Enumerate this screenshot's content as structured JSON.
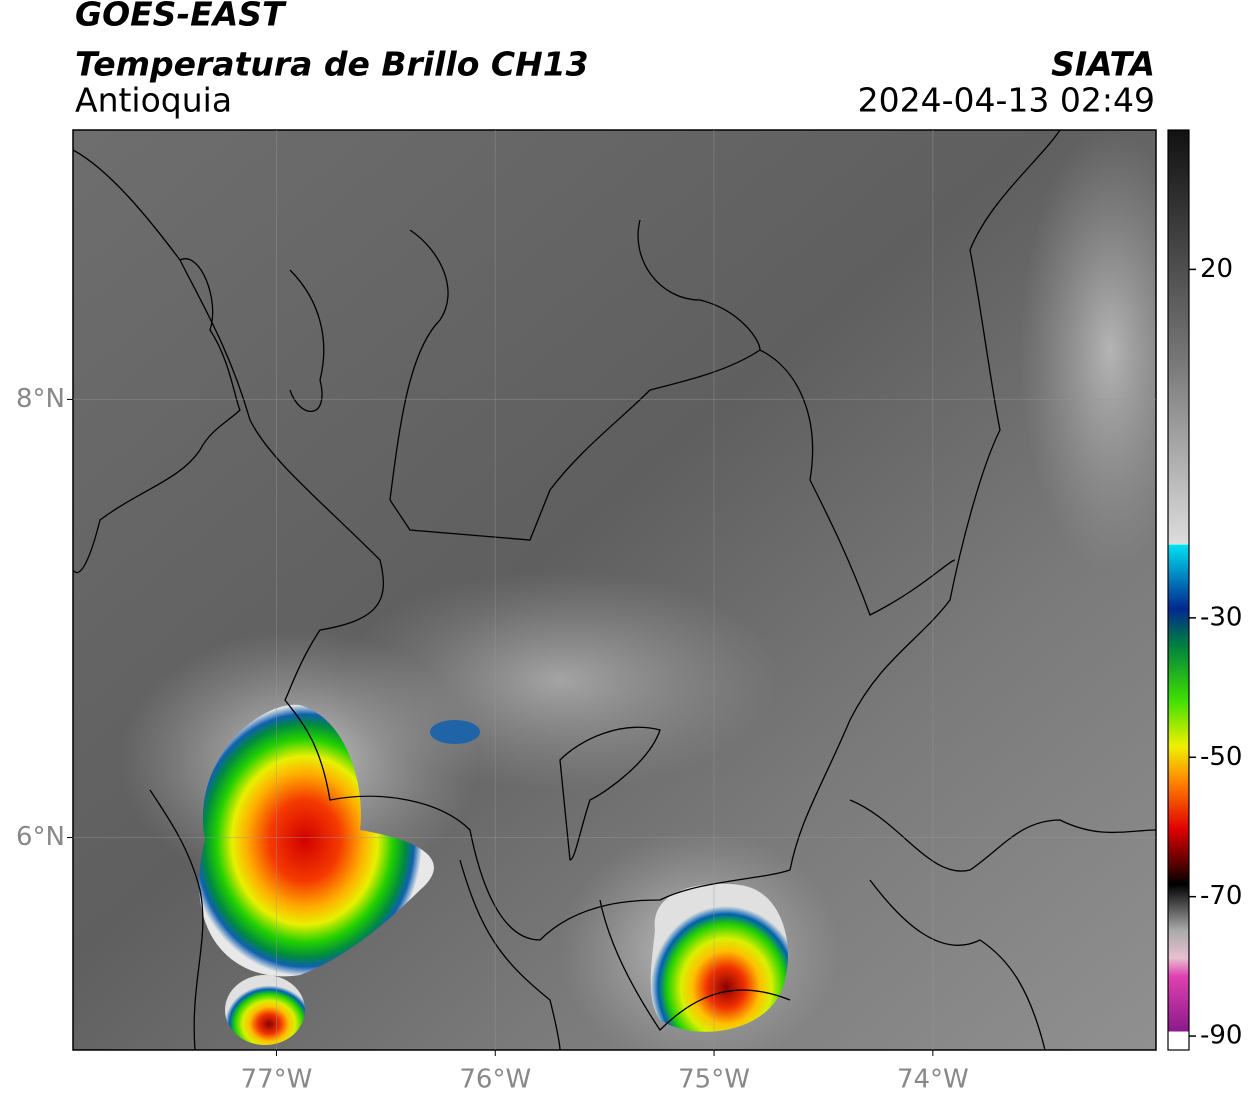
{
  "header": {
    "title": "GOES-EAST",
    "subtitle": "Temperatura de Brillo CH13",
    "region": "Antioquia",
    "source": "SIATA",
    "datetime": "2024-04-13 02:49"
  },
  "map": {
    "xlim": [
      -77.93,
      -72.98
    ],
    "ylim": [
      5.03,
      9.23
    ],
    "xticks": [
      {
        "value": -77,
        "label": "77°W"
      },
      {
        "value": -76,
        "label": "76°W"
      },
      {
        "value": -75,
        "label": "75°W"
      },
      {
        "value": -74,
        "label": "74°W"
      }
    ],
    "yticks": [
      {
        "value": 8,
        "label": "8°N"
      },
      {
        "value": 6,
        "label": "6°N"
      }
    ],
    "grid": true
  },
  "colorbar": {
    "lim": [
      -92,
      40
    ],
    "ticks": [
      20,
      -30,
      -50,
      -70,
      -90
    ]
  }
}
